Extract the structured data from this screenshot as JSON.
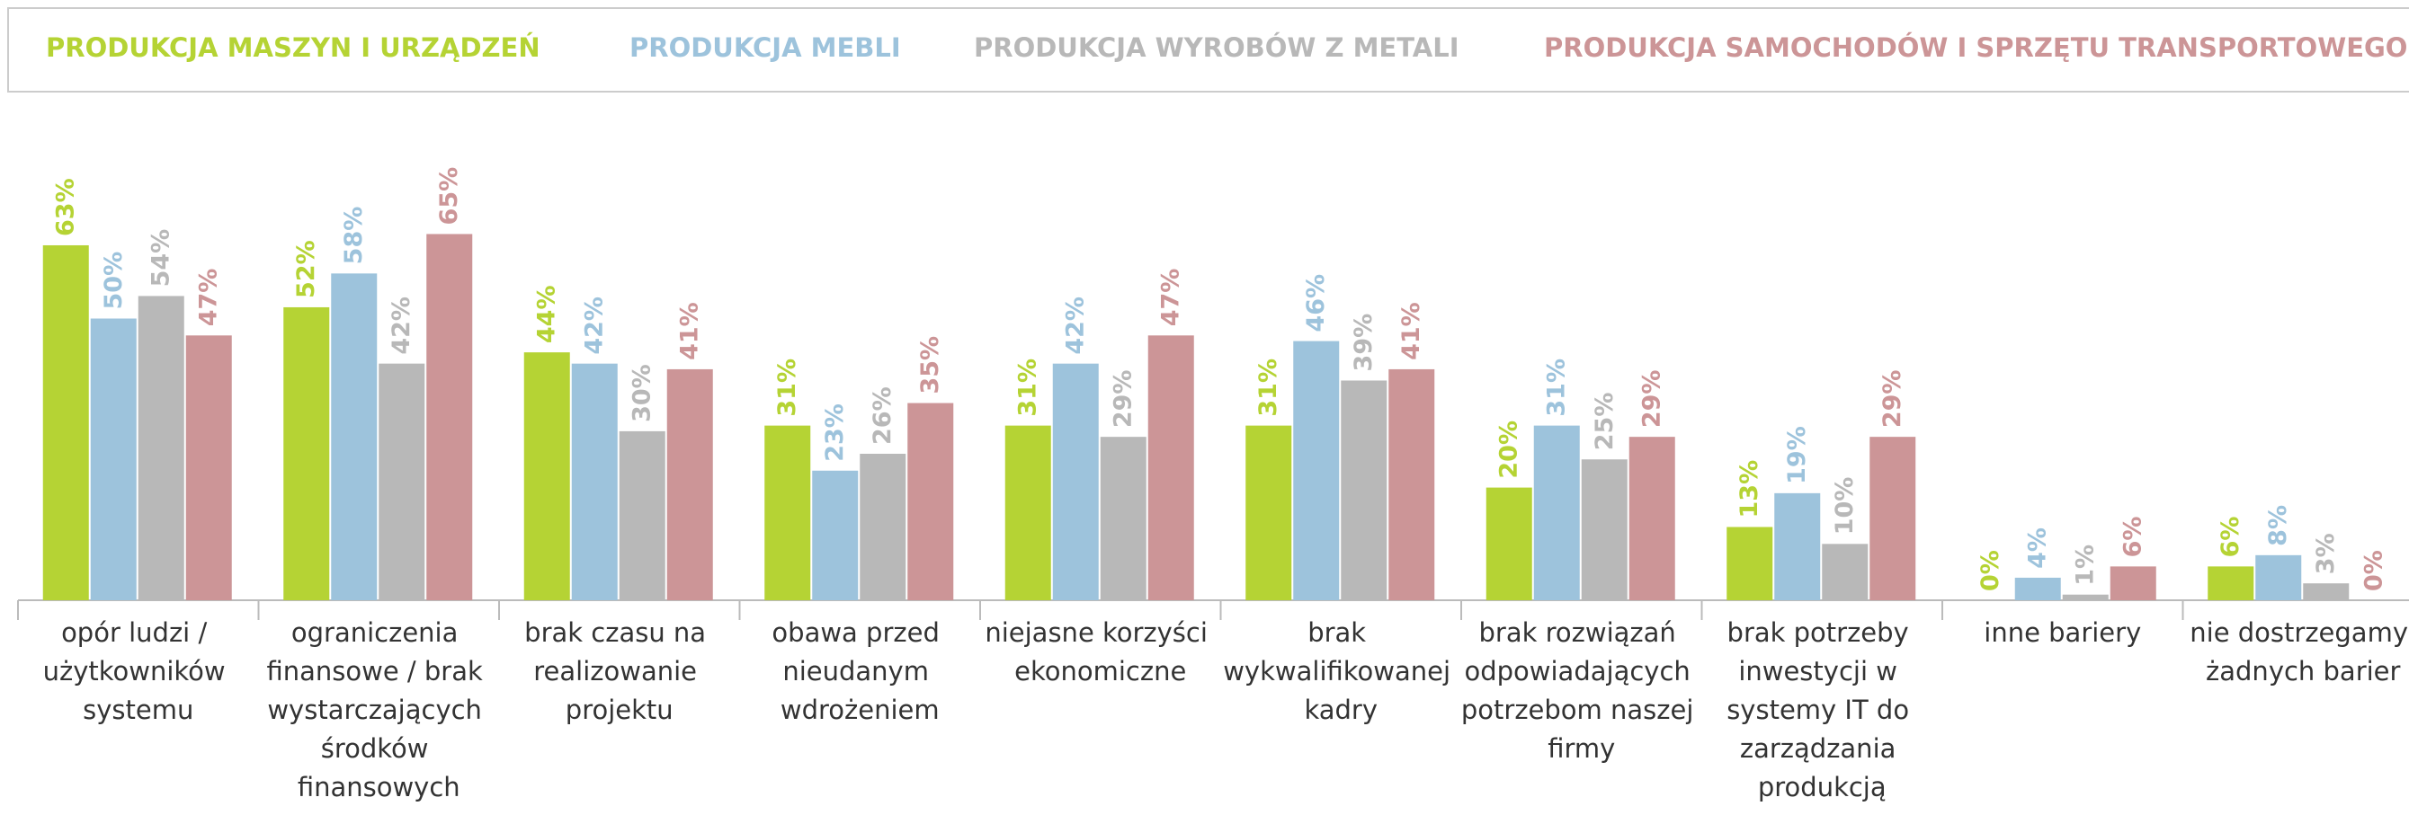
{
  "chart_data": {
    "type": "bar",
    "categories": [
      "opór ludzi / użytkowników systemu",
      "ograniczenia finansowe / brak wystarczających środków finansowych",
      "brak czasu na realizowanie projektu",
      "obawa przed nieudanym wdrożeniem",
      "niejasne korzyści ekonomiczne",
      "brak wykwalifikowanej kadry",
      "brak rozwiązań odpowiadających potrzebom naszej firmy",
      "brak potrzeby inwestycji w systemy IT do zarządzania produkcją",
      "inne bariery",
      "nie dostrzegamy żadnych barier"
    ],
    "series": [
      {
        "name": "PRODUKCJA MASZYN I URZĄDZEŃ",
        "color": "#b5d334",
        "values": [
          63,
          52,
          44,
          31,
          31,
          31,
          20,
          13,
          0,
          6
        ],
        "value_labels": [
          "63%",
          "52%",
          "44%",
          "31%",
          "31%",
          "31%",
          "20%",
          "13%",
          "0%",
          "6%"
        ]
      },
      {
        "name": "PRODUKCJA MEBLI",
        "color": "#9dc3dc",
        "values": [
          50,
          58,
          42,
          23,
          42,
          46,
          31,
          19,
          4,
          8
        ],
        "value_labels": [
          "50%",
          "58%",
          "42%",
          "23%",
          "42%",
          "46%",
          "31%",
          "19%",
          "4%",
          "8%"
        ]
      },
      {
        "name": "PRODUKCJA WYROBÓW Z METALI",
        "color": "#b8b8b8",
        "values": [
          54,
          42,
          30,
          26,
          29,
          39,
          25,
          10,
          1,
          3
        ],
        "value_labels": [
          "54%",
          "42%",
          "30%",
          "26%",
          "29%",
          "39%",
          "25%",
          "10%",
          "1%",
          "3%"
        ]
      },
      {
        "name": "PRODUKCJA SAMOCHODÓW I SPRZĘTU TRANSPORTOWEGO",
        "color": "#cc9597",
        "values": [
          47,
          65,
          41,
          35,
          47,
          41,
          29,
          29,
          6,
          0
        ],
        "value_labels": [
          "47%",
          "65%",
          "41%",
          "35%",
          "47%",
          "41%",
          "29%",
          "29%",
          "6%",
          "0%"
        ]
      }
    ]
  }
}
